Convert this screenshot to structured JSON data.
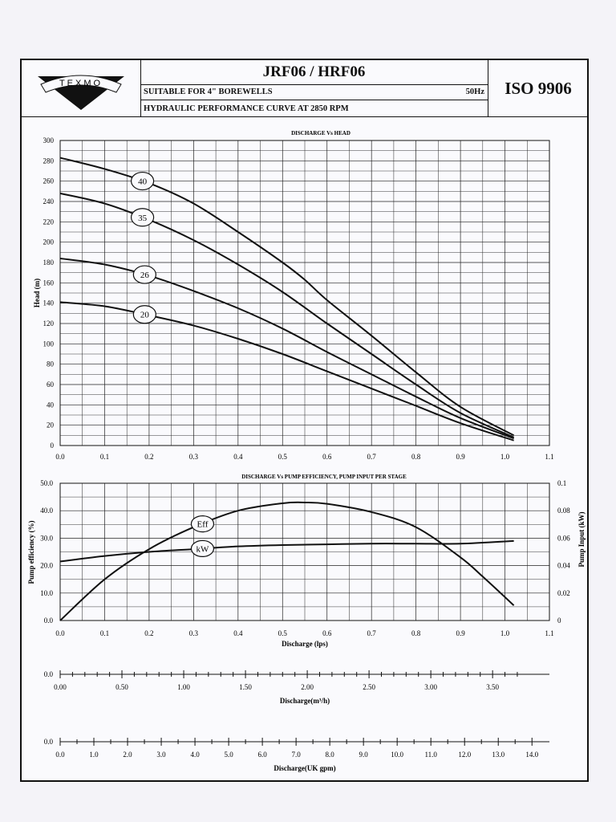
{
  "header": {
    "brand": "TEXMO",
    "model": "JRF06 / HRF06",
    "suitability": "SUITABLE FOR 4\" BOREWELLS",
    "frequency": "50Hz",
    "curve_title": "HYDRAULIC PERFORMANCE CURVE AT 2850 RPM",
    "standard": "ISO 9906"
  },
  "colors": {
    "ink": "#111111",
    "grid": "#222222",
    "paper": "#fafafd"
  },
  "chart_data": [
    {
      "type": "line",
      "title": "DISCHARGE Vs HEAD",
      "xlabel": "",
      "ylabel": "Head (m)",
      "xlim": [
        0,
        1.1
      ],
      "ylim": [
        0,
        300
      ],
      "grid": true,
      "x_ticks": [
        "0.0",
        "0.1",
        "0.2",
        "0.3",
        "0.4",
        "0.5",
        "0.6",
        "0.7",
        "0.8",
        "0.9",
        "1.0",
        "1.1"
      ],
      "y_ticks": [
        "0",
        "20",
        "40",
        "60",
        "80",
        "100",
        "120",
        "140",
        "160",
        "180",
        "200",
        "220",
        "240",
        "260",
        "280",
        "300"
      ],
      "series": [
        {
          "name": "40",
          "x": [
            0.0,
            0.1,
            0.2,
            0.3,
            0.4,
            0.5,
            0.55,
            0.6,
            0.7,
            0.8,
            0.9,
            1.02
          ],
          "y": [
            283,
            272,
            258,
            238,
            210,
            180,
            163,
            143,
            108,
            72,
            38,
            10
          ]
        },
        {
          "name": "35",
          "x": [
            0.0,
            0.1,
            0.2,
            0.3,
            0.4,
            0.5,
            0.6,
            0.7,
            0.8,
            0.9,
            1.02
          ],
          "y": [
            248,
            238,
            222,
            202,
            178,
            151,
            120,
            90,
            60,
            32,
            8
          ]
        },
        {
          "name": "26",
          "x": [
            0.0,
            0.1,
            0.2,
            0.3,
            0.4,
            0.5,
            0.6,
            0.7,
            0.8,
            0.9,
            1.02
          ],
          "y": [
            184,
            178,
            167,
            152,
            135,
            115,
            92,
            70,
            48,
            27,
            7
          ]
        },
        {
          "name": "20",
          "x": [
            0.0,
            0.1,
            0.2,
            0.3,
            0.4,
            0.5,
            0.6,
            0.7,
            0.8,
            0.9,
            1.02
          ],
          "y": [
            141,
            137,
            128,
            118,
            105,
            90,
            73,
            56,
            39,
            22,
            5
          ]
        }
      ]
    },
    {
      "type": "line",
      "title": "DISCHARGE Vs PUMP EFFICIENCY, PUMP INPUT PER STAGE",
      "xlabel": "Discharge (lps)",
      "ylabel": "Pump efficiency (%)",
      "y2label": "Pump  Input (kW)",
      "xlim": [
        0,
        1.1
      ],
      "ylim": [
        0,
        50
      ],
      "y2lim": [
        0,
        0.1
      ],
      "grid": true,
      "x_ticks": [
        "0.0",
        "0.1",
        "0.2",
        "0.3",
        "0.4",
        "0.5",
        "0.6",
        "0.7",
        "0.8",
        "0.9",
        "1.0",
        "1.1"
      ],
      "y_ticks": [
        "0.0",
        "10.0",
        "20.0",
        "30.0",
        "40.0",
        "50.0"
      ],
      "y2_ticks": [
        "0",
        "0.02",
        "0.04",
        "0.06",
        "0.08",
        "0.1"
      ],
      "series": [
        {
          "name": "Eff",
          "axis": "left",
          "x": [
            0.0,
            0.1,
            0.2,
            0.3,
            0.4,
            0.5,
            0.55,
            0.6,
            0.7,
            0.8,
            0.9,
            0.95,
            1.02
          ],
          "y": [
            0,
            15,
            26,
            34,
            40,
            42.7,
            43,
            42.5,
            39.5,
            34,
            23,
            16,
            5.5
          ]
        },
        {
          "name": "kW",
          "axis": "right",
          "x": [
            0.0,
            0.1,
            0.2,
            0.3,
            0.4,
            0.5,
            0.6,
            0.7,
            0.8,
            0.9,
            1.02
          ],
          "y": [
            0.043,
            0.047,
            0.05,
            0.052,
            0.054,
            0.055,
            0.0555,
            0.056,
            0.056,
            0.056,
            0.058
          ]
        }
      ]
    }
  ],
  "conversion_scales": [
    {
      "zero_label": "0.0",
      "xlabel": "Discharge(m³/h)",
      "ticks": [
        "0.00",
        "0.50",
        "1.00",
        "1.50",
        "2.00",
        "2.50",
        "3.00",
        "3.50"
      ],
      "step": 0.5,
      "minor": 0.1,
      "max": 3.7
    },
    {
      "zero_label": "0.0",
      "xlabel": "Discharge(UK gpm)",
      "ticks": [
        "0.0",
        "1.0",
        "2.0",
        "3.0",
        "4.0",
        "5.0",
        "6.0",
        "7.0",
        "8.0",
        "9.0",
        "10.0",
        "11.0",
        "12.0",
        "13.0",
        "14.0"
      ],
      "step": 1.0,
      "minor": 0.5,
      "max": 14.0
    }
  ]
}
